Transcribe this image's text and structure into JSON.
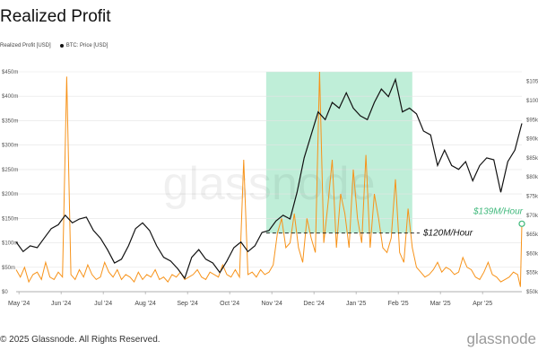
{
  "title": "Realized Profit",
  "legend": {
    "profit_label": "Realized Profit [USD]",
    "price_label": "BTC: Price [USD]"
  },
  "copyright": "© 2025 Glassnode. All Rights Reserved.",
  "brand": "glassnode",
  "colors": {
    "profit": "#f7931a",
    "price": "#111111",
    "highlight": "#bfeed8",
    "marker": "#3fb87b",
    "grid": "#e4e4e4"
  },
  "chart_data": {
    "type": "line",
    "x_ticks": [
      "May '24",
      "Jun '24",
      "Jul '24",
      "Aug '24",
      "Sep '24",
      "Oct '24",
      "Nov '24",
      "Dec '24",
      "Jan '25",
      "Feb '25",
      "Mar '25",
      "Apr '25"
    ],
    "y_left": {
      "ticks": [
        "$0",
        "$50m",
        "$100m",
        "$150m",
        "$200m",
        "$250m",
        "$300m",
        "$350m",
        "$400m",
        "$450m"
      ],
      "range": [
        0,
        450
      ]
    },
    "y_right": {
      "ticks": [
        "$50k",
        "$55k",
        "$60k",
        "$65k",
        "$70k",
        "$75k",
        "$80k",
        "$85k",
        "$90k",
        "$95k",
        "$100k",
        "$105k"
      ],
      "range": [
        50000,
        107500
      ]
    },
    "series": [
      {
        "name": "Realized Profit [USD]",
        "axis": "left",
        "unit": "USD millions",
        "x": [
          0,
          3,
          6,
          9,
          12,
          15,
          18,
          21,
          24,
          27,
          30,
          33,
          36,
          39,
          42,
          45,
          48,
          51,
          54,
          57,
          60,
          63,
          66,
          69,
          72,
          75,
          78,
          81,
          84,
          87,
          90,
          93,
          96,
          99,
          102,
          105,
          108,
          111,
          114,
          117,
          120,
          123,
          126,
          129,
          132,
          135,
          138,
          141,
          144,
          147,
          150,
          153,
          156,
          159,
          162,
          165,
          168,
          171,
          174,
          177,
          180,
          183,
          186,
          189,
          192,
          195,
          198,
          201,
          204,
          207,
          210,
          213,
          216,
          219,
          222,
          225,
          228,
          231,
          234,
          237,
          240,
          243,
          246,
          249,
          252,
          255,
          258,
          261,
          264,
          267,
          270,
          273,
          276,
          279,
          282,
          285,
          288,
          291,
          294,
          297,
          300,
          303,
          306,
          309,
          312,
          315,
          318,
          321,
          324,
          327,
          330,
          333,
          336,
          339,
          342,
          345,
          348,
          351,
          354,
          357,
          359,
          360
        ],
        "values": [
          45,
          30,
          50,
          20,
          35,
          40,
          25,
          60,
          30,
          25,
          40,
          30,
          440,
          35,
          25,
          45,
          30,
          55,
          35,
          25,
          30,
          60,
          40,
          30,
          45,
          25,
          35,
          30,
          20,
          40,
          25,
          35,
          30,
          45,
          25,
          30,
          20,
          35,
          30,
          40,
          25,
          30,
          35,
          45,
          30,
          25,
          40,
          35,
          30,
          55,
          35,
          30,
          45,
          30,
          270,
          35,
          40,
          30,
          45,
          35,
          40,
          55,
          120,
          150,
          90,
          100,
          160,
          90,
          60,
          150,
          110,
          80,
          450,
          100,
          180,
          270,
          90,
          200,
          160,
          90,
          250,
          150,
          100,
          280,
          90,
          200,
          150,
          90,
          80,
          110,
          230,
          80,
          60,
          170,
          90,
          50,
          40,
          30,
          35,
          45,
          60,
          40,
          50,
          45,
          35,
          40,
          70,
          50,
          45,
          30,
          25,
          40,
          60,
          35,
          30,
          20,
          25,
          30,
          40,
          35,
          10,
          139
        ]
      },
      {
        "name": "BTC: Price [USD]",
        "axis": "right",
        "unit": "USD",
        "x": [
          0,
          5,
          10,
          15,
          20,
          25,
          30,
          35,
          40,
          45,
          50,
          55,
          60,
          65,
          70,
          75,
          80,
          85,
          90,
          95,
          100,
          105,
          110,
          115,
          120,
          125,
          130,
          135,
          140,
          145,
          150,
          155,
          160,
          165,
          170,
          175,
          180,
          185,
          190,
          195,
          200,
          205,
          210,
          215,
          220,
          225,
          230,
          235,
          240,
          245,
          250,
          255,
          260,
          265,
          270,
          275,
          280,
          285,
          290,
          295,
          300,
          305,
          310,
          315,
          320,
          325,
          330,
          335,
          340,
          345,
          350,
          355,
          360
        ],
        "values": [
          63000,
          60500,
          62000,
          61500,
          64000,
          66500,
          67500,
          70000,
          68000,
          69000,
          69500,
          66000,
          64000,
          61000,
          57500,
          58500,
          62000,
          66500,
          68000,
          66000,
          62000,
          59000,
          58000,
          56000,
          53500,
          59000,
          61000,
          58500,
          57500,
          55000,
          58000,
          61500,
          63000,
          60500,
          62000,
          65500,
          66000,
          68500,
          70000,
          69000,
          76000,
          85000,
          91000,
          97000,
          95000,
          99500,
          98000,
          102000,
          98000,
          96000,
          95000,
          99500,
          103000,
          101000,
          105500,
          97000,
          98000,
          96500,
          92000,
          91000,
          83000,
          87000,
          83000,
          82000,
          84000,
          79000,
          83000,
          85000,
          84500,
          76000,
          84000,
          87000,
          94000
        ]
      }
    ],
    "highlight": {
      "from": "Nov '24",
      "to": "Feb '25"
    },
    "annotations": [
      {
        "text": "$120M/Hour",
        "value_usd_m": 120
      },
      {
        "text": "$139M/Hour",
        "value_usd_m": 139
      }
    ],
    "watermark": "glassnode"
  }
}
